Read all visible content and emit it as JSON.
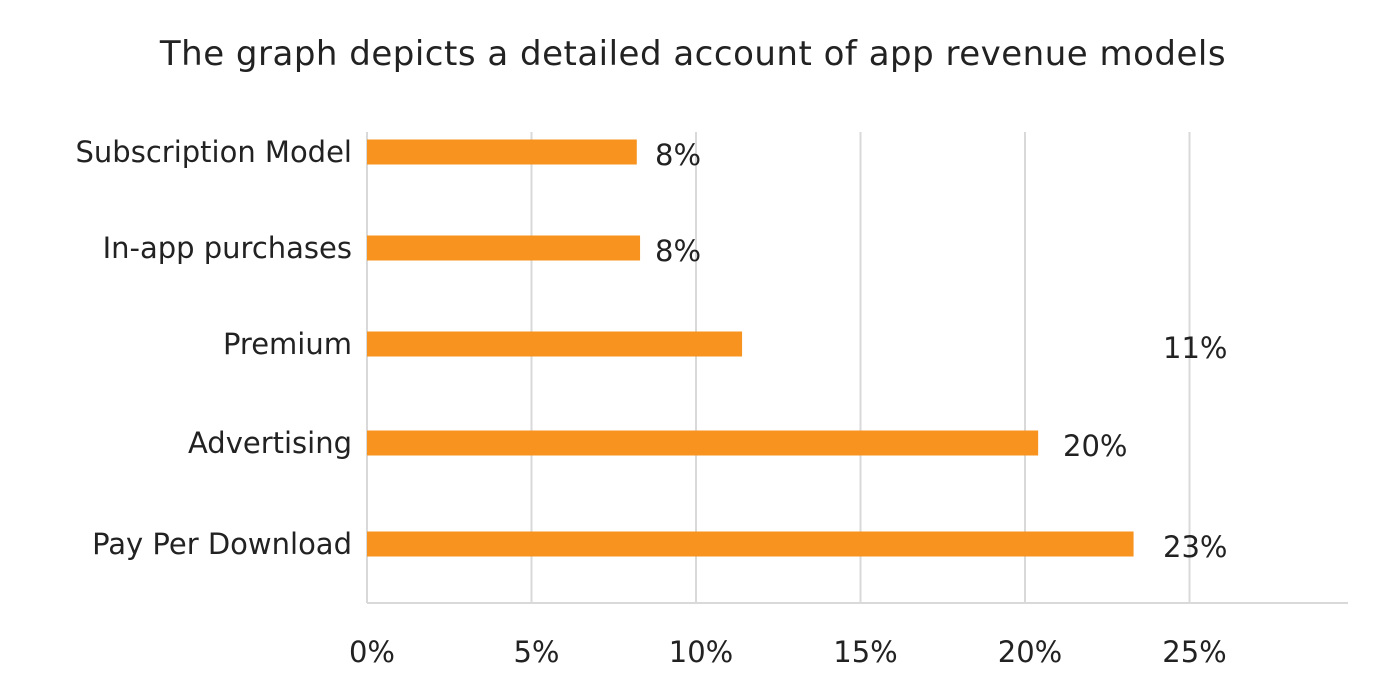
{
  "chart_data": {
    "type": "bar",
    "orientation": "horizontal",
    "title": "The graph depicts a detailed account of app revenue models",
    "categories": [
      "Subscription Model",
      "In-app purchases",
      "Premium",
      "Advertising",
      "Pay Per Download"
    ],
    "values": [
      8.2,
      8.3,
      11.4,
      20.4,
      23.3
    ],
    "value_labels": [
      "8%",
      "8%",
      "11%",
      "20%",
      "23%"
    ],
    "x_ticks": [
      "0%",
      "5%",
      "10%",
      "15%",
      "20%",
      "25%"
    ],
    "xlim": [
      0,
      30
    ],
    "xlabel": "",
    "ylabel": "",
    "grid": true,
    "legend": "none",
    "bar_color": "#f7931e",
    "grid_color": "#d9d9d9"
  }
}
